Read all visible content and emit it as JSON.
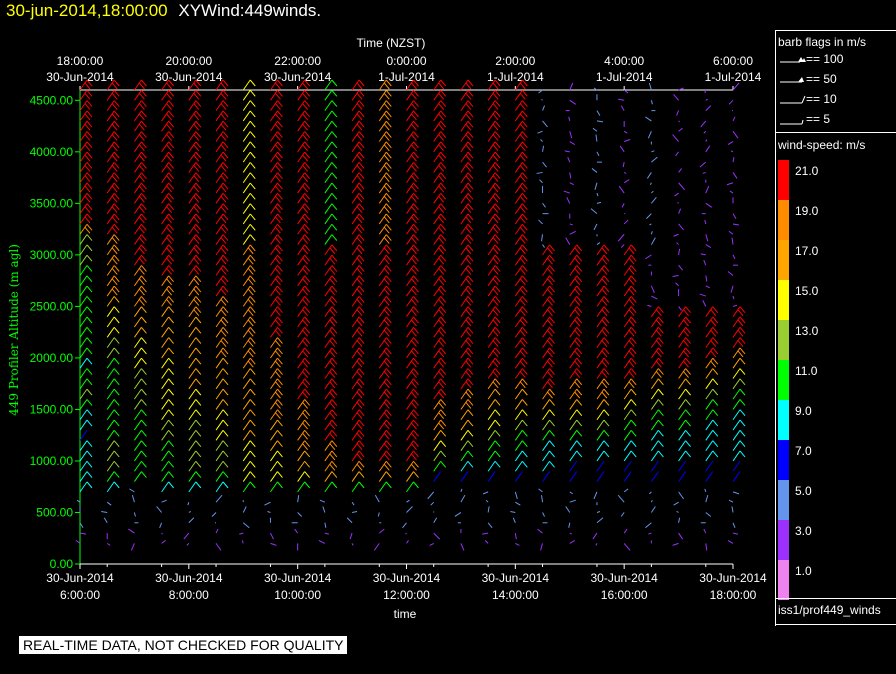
{
  "title": {
    "datetime": "30-jun-2014,18:00:00",
    "product": "XYWind:449winds."
  },
  "disclaimer": "REAL-TIME DATA, NOT CHECKED FOR QUALITY",
  "legend": {
    "barb_heading": "barb flags in m/s",
    "barb_flags": [
      "== 100",
      "== 50",
      "== 10",
      "== 5"
    ],
    "speed_heading": "wind-speed: m/s",
    "colorbar": [
      {
        "label": "21.0",
        "color": "#ff0000"
      },
      {
        "label": "19.0",
        "color": "#ff8c00"
      },
      {
        "label": "17.0",
        "color": "#ffa500"
      },
      {
        "label": "15.0",
        "color": "#ffff00"
      },
      {
        "label": "13.0",
        "color": "#9acd32"
      },
      {
        "label": "11.0",
        "color": "#00ff00"
      },
      {
        "label": "9.0",
        "color": "#00ffff"
      },
      {
        "label": "7.0",
        "color": "#0000ff"
      },
      {
        "label": "5.0",
        "color": "#6495ed"
      },
      {
        "label": "3.0",
        "color": "#9b30ff"
      },
      {
        "label": "1.0",
        "color": "#ee82ee"
      }
    ],
    "source": "iss1/prof449_winds"
  },
  "chart_data": {
    "type": "scatter",
    "subtype": "wind-barb time-height plot",
    "ylabel": "449 Profiler Altitude (m agl)",
    "xlabel": "time",
    "top_axis_title": "Time (NZST)",
    "ylim": [
      0,
      4600
    ],
    "y_ticks": [
      "0.00",
      "500.00",
      "1000.00",
      "1500.00",
      "2000.00",
      "2500.00",
      "3000.00",
      "3500.00",
      "4000.00",
      "4500.00"
    ],
    "x_ticks_bottom": [
      {
        "date": "30-Jun-2014",
        "time": "6:00:00"
      },
      {
        "date": "30-Jun-2014",
        "time": "8:00:00"
      },
      {
        "date": "30-Jun-2014",
        "time": "10:00:00"
      },
      {
        "date": "30-Jun-2014",
        "time": "12:00:00"
      },
      {
        "date": "30-Jun-2014",
        "time": "14:00:00"
      },
      {
        "date": "30-Jun-2014",
        "time": "16:00:00"
      },
      {
        "date": "30-Jun-2014",
        "time": "18:00:00"
      }
    ],
    "x_ticks_top": [
      {
        "time": "18:00:00",
        "date": "30-Jun-2014"
      },
      {
        "time": "20:00:00",
        "date": "30-Jun-2014"
      },
      {
        "time": "22:00:00",
        "date": "30-Jun-2014"
      },
      {
        "time": "0:00:00",
        "date": "1-Jul-2014"
      },
      {
        "time": "2:00:00",
        "date": "1-Jul-2014"
      },
      {
        "time": "4:00:00",
        "date": "1-Jul-2014"
      },
      {
        "time": "6:00:00",
        "date": "1-Jul-2014"
      }
    ],
    "x_hours_utc": [
      6.0,
      6.5,
      7.0,
      7.5,
      8.0,
      8.5,
      9.0,
      9.5,
      10.0,
      10.5,
      11.0,
      11.5,
      12.0,
      12.5,
      13.0,
      13.5,
      14.0,
      14.5,
      15.0,
      15.5,
      16.0,
      16.5,
      17.0,
      17.5,
      18.0
    ],
    "y_levels_m": [
      4600,
      4500,
      4400,
      4300,
      4200,
      4100,
      4000,
      3900,
      3800,
      3700,
      3600,
      3500,
      3400,
      3300,
      3200,
      3100,
      3000,
      2900,
      2800,
      2700,
      2600,
      2500,
      2400,
      2300,
      2200,
      2100,
      2000,
      1900,
      1800,
      1700,
      1600,
      1500,
      1400,
      1300,
      1200,
      1100,
      1000,
      900,
      800,
      700,
      600,
      500,
      400,
      300,
      200
    ],
    "speed_ms": [
      [
        21,
        21,
        21,
        21,
        21,
        21,
        21,
        21,
        21,
        21,
        21,
        21,
        21,
        21,
        19,
        13,
        13,
        13,
        11,
        11,
        11,
        11,
        11,
        11,
        11,
        11,
        11,
        9,
        11,
        11,
        13,
        11,
        9,
        9,
        7,
        9,
        9,
        9,
        9,
        9,
        5,
        5,
        5,
        3,
        3
      ],
      [
        21,
        21,
        21,
        21,
        21,
        21,
        21,
        21,
        21,
        21,
        21,
        21,
        21,
        21,
        21,
        19,
        19,
        19,
        19,
        19,
        19,
        17,
        15,
        15,
        15,
        13,
        13,
        11,
        11,
        11,
        11,
        11,
        11,
        11,
        11,
        13,
        13,
        13,
        11,
        9,
        5,
        5,
        5,
        3,
        3
      ],
      [
        21,
        21,
        21,
        21,
        21,
        21,
        21,
        21,
        21,
        21,
        21,
        21,
        21,
        21,
        21,
        21,
        21,
        21,
        19,
        19,
        19,
        19,
        17,
        17,
        17,
        15,
        15,
        15,
        13,
        13,
        13,
        13,
        11,
        11,
        11,
        11,
        11,
        11,
        11,
        5,
        5,
        5,
        5,
        3,
        3
      ],
      [
        21,
        21,
        21,
        21,
        21,
        21,
        21,
        21,
        21,
        21,
        21,
        21,
        21,
        21,
        21,
        21,
        21,
        21,
        21,
        19,
        19,
        19,
        17,
        17,
        17,
        17,
        17,
        15,
        15,
        15,
        15,
        15,
        15,
        13,
        13,
        11,
        11,
        11,
        11,
        9,
        5,
        5,
        5,
        3,
        3
      ],
      [
        21,
        21,
        21,
        21,
        21,
        21,
        21,
        21,
        21,
        21,
        21,
        21,
        21,
        21,
        21,
        21,
        21,
        21,
        21,
        19,
        19,
        19,
        19,
        17,
        17,
        17,
        17,
        17,
        17,
        17,
        15,
        15,
        15,
        13,
        13,
        13,
        13,
        13,
        11,
        9,
        5,
        5,
        5,
        3,
        3
      ],
      [
        21,
        21,
        21,
        21,
        21,
        21,
        21,
        21,
        21,
        21,
        21,
        21,
        21,
        21,
        21,
        21,
        21,
        21,
        21,
        21,
        21,
        19,
        19,
        19,
        19,
        19,
        19,
        17,
        17,
        17,
        17,
        17,
        15,
        15,
        15,
        13,
        13,
        13,
        11,
        9,
        5,
        5,
        5,
        3,
        3
      ],
      [
        15,
        15,
        15,
        15,
        15,
        15,
        15,
        15,
        15,
        15,
        15,
        15,
        15,
        15,
        15,
        15,
        19,
        19,
        19,
        19,
        19,
        19,
        19,
        19,
        19,
        19,
        19,
        19,
        17,
        17,
        17,
        17,
        17,
        17,
        17,
        15,
        15,
        15,
        15,
        11,
        5,
        5,
        5,
        3,
        3
      ],
      [
        21,
        21,
        21,
        21,
        21,
        21,
        21,
        21,
        21,
        21,
        21,
        21,
        21,
        21,
        21,
        21,
        21,
        21,
        21,
        21,
        21,
        21,
        21,
        21,
        21,
        19,
        19,
        19,
        19,
        19,
        19,
        19,
        19,
        17,
        17,
        17,
        15,
        15,
        15,
        11,
        5,
        5,
        5,
        3,
        3
      ],
      [
        21,
        21,
        21,
        21,
        21,
        21,
        21,
        21,
        21,
        21,
        21,
        21,
        21,
        21,
        21,
        21,
        21,
        21,
        21,
        21,
        21,
        21,
        21,
        21,
        21,
        21,
        21,
        21,
        21,
        21,
        21,
        19,
        19,
        19,
        19,
        19,
        17,
        17,
        15,
        11,
        5,
        5,
        5,
        3,
        3
      ],
      [
        11,
        11,
        11,
        11,
        11,
        11,
        11,
        11,
        11,
        11,
        11,
        11,
        11,
        11,
        11,
        11,
        21,
        21,
        21,
        21,
        21,
        21,
        21,
        21,
        21,
        21,
        21,
        21,
        21,
        21,
        21,
        21,
        21,
        21,
        21,
        19,
        19,
        19,
        17,
        11,
        5,
        5,
        5,
        3,
        3
      ],
      [
        21,
        21,
        21,
        21,
        21,
        21,
        21,
        21,
        21,
        21,
        21,
        21,
        21,
        21,
        21,
        21,
        21,
        21,
        21,
        21,
        21,
        21,
        21,
        21,
        21,
        21,
        21,
        21,
        21,
        21,
        21,
        21,
        21,
        21,
        21,
        21,
        21,
        19,
        17,
        11,
        5,
        5,
        5,
        3,
        3
      ],
      [
        19,
        19,
        19,
        19,
        19,
        19,
        19,
        19,
        19,
        19,
        19,
        19,
        19,
        19,
        19,
        19,
        21,
        21,
        21,
        21,
        21,
        21,
        21,
        21,
        21,
        21,
        21,
        21,
        21,
        21,
        21,
        21,
        21,
        21,
        21,
        21,
        21,
        19,
        17,
        11,
        5,
        5,
        5,
        3,
        3
      ],
      [
        21,
        21,
        21,
        21,
        21,
        21,
        21,
        21,
        21,
        21,
        21,
        21,
        21,
        21,
        21,
        21,
        21,
        21,
        21,
        21,
        21,
        21,
        21,
        21,
        21,
        21,
        21,
        21,
        21,
        21,
        21,
        21,
        21,
        21,
        21,
        21,
        21,
        19,
        17,
        11,
        5,
        5,
        5,
        3,
        3
      ],
      [
        21,
        21,
        21,
        21,
        21,
        21,
        21,
        21,
        21,
        21,
        21,
        21,
        21,
        21,
        21,
        21,
        21,
        21,
        21,
        21,
        21,
        21,
        21,
        21,
        21,
        21,
        21,
        21,
        21,
        21,
        21,
        19,
        19,
        19,
        17,
        15,
        13,
        11,
        7,
        5,
        5,
        5,
        5,
        3,
        3
      ],
      [
        21,
        21,
        21,
        21,
        21,
        21,
        21,
        21,
        21,
        21,
        21,
        21,
        21,
        21,
        21,
        21,
        21,
        21,
        21,
        21,
        21,
        21,
        21,
        21,
        21,
        21,
        21,
        21,
        21,
        21,
        19,
        19,
        17,
        17,
        15,
        13,
        11,
        9,
        7,
        5,
        5,
        5,
        5,
        3,
        3
      ],
      [
        21,
        21,
        21,
        21,
        21,
        21,
        21,
        21,
        21,
        21,
        21,
        21,
        21,
        21,
        21,
        21,
        21,
        21,
        21,
        21,
        21,
        21,
        21,
        21,
        21,
        21,
        21,
        21,
        21,
        19,
        17,
        17,
        15,
        15,
        13,
        11,
        11,
        9,
        7,
        5,
        5,
        5,
        5,
        3,
        3
      ],
      [
        21,
        21,
        21,
        21,
        21,
        21,
        21,
        21,
        21,
        21,
        21,
        21,
        21,
        21,
        21,
        21,
        21,
        21,
        21,
        21,
        21,
        21,
        21,
        21,
        21,
        21,
        21,
        21,
        21,
        19,
        17,
        17,
        15,
        13,
        11,
        11,
        9,
        9,
        7,
        5,
        5,
        5,
        5,
        3,
        3
      ],
      [
        5,
        5,
        5,
        5,
        5,
        5,
        5,
        5,
        5,
        5,
        5,
        5,
        5,
        5,
        5,
        5,
        21,
        21,
        21,
        21,
        21,
        21,
        21,
        21,
        21,
        21,
        21,
        21,
        21,
        21,
        19,
        17,
        15,
        13,
        11,
        9,
        9,
        9,
        7,
        5,
        5,
        5,
        5,
        3,
        3
      ],
      [
        3,
        3,
        3,
        3,
        3,
        3,
        3,
        3,
        3,
        3,
        3,
        3,
        3,
        3,
        3,
        3,
        21,
        21,
        21,
        21,
        21,
        21,
        21,
        21,
        21,
        21,
        21,
        21,
        21,
        19,
        19,
        17,
        15,
        13,
        11,
        9,
        9,
        7,
        7,
        5,
        5,
        5,
        5,
        3,
        3
      ],
      [
        5,
        5,
        5,
        5,
        5,
        5,
        5,
        5,
        5,
        5,
        5,
        5,
        5,
        5,
        5,
        5,
        21,
        21,
        21,
        21,
        21,
        21,
        21,
        21,
        21,
        21,
        21,
        21,
        21,
        19,
        19,
        17,
        15,
        13,
        11,
        9,
        9,
        7,
        7,
        5,
        5,
        5,
        5,
        3,
        3
      ],
      [
        3,
        3,
        3,
        3,
        3,
        3,
        3,
        3,
        3,
        3,
        3,
        3,
        3,
        3,
        3,
        3,
        21,
        21,
        21,
        21,
        21,
        21,
        21,
        21,
        21,
        21,
        21,
        21,
        21,
        19,
        17,
        15,
        13,
        11,
        11,
        9,
        9,
        7,
        7,
        5,
        5,
        5,
        5,
        3,
        3
      ],
      [
        5,
        5,
        5,
        5,
        5,
        5,
        5,
        5,
        5,
        5,
        5,
        5,
        5,
        5,
        5,
        5,
        3,
        3,
        3,
        3,
        3,
        3,
        21,
        21,
        21,
        21,
        21,
        21,
        19,
        17,
        15,
        13,
        11,
        11,
        9,
        9,
        9,
        7,
        7,
        5,
        5,
        5,
        5,
        3,
        3
      ],
      [
        3,
        3,
        3,
        3,
        3,
        3,
        3,
        3,
        3,
        3,
        3,
        3,
        3,
        3,
        3,
        3,
        3,
        3,
        3,
        3,
        3,
        3,
        21,
        21,
        21,
        21,
        21,
        21,
        19,
        17,
        15,
        13,
        11,
        11,
        9,
        9,
        9,
        7,
        7,
        5,
        5,
        5,
        5,
        3,
        3
      ],
      [
        3,
        3,
        3,
        3,
        3,
        3,
        3,
        3,
        3,
        3,
        3,
        3,
        3,
        3,
        3,
        3,
        3,
        3,
        3,
        3,
        3,
        3,
        21,
        21,
        21,
        21,
        21,
        19,
        17,
        15,
        13,
        11,
        11,
        9,
        9,
        9,
        9,
        7,
        7,
        5,
        5,
        5,
        5,
        3,
        3
      ],
      [
        3,
        3,
        3,
        3,
        3,
        3,
        3,
        3,
        3,
        3,
        3,
        3,
        3,
        3,
        3,
        3,
        3,
        3,
        3,
        3,
        3,
        3,
        21,
        21,
        21,
        21,
        19,
        17,
        15,
        13,
        11,
        11,
        9,
        9,
        9,
        9,
        9,
        7,
        7,
        5,
        5,
        5,
        5,
        3,
        3
      ]
    ]
  }
}
